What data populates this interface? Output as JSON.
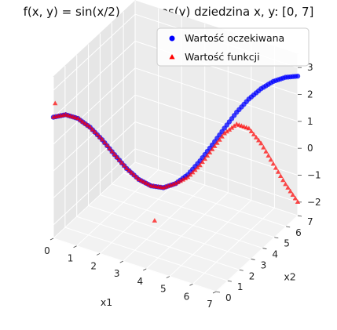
{
  "chart_data": {
    "type": "scatter",
    "title": "f(x, y) = sin(x/2) + 2* cos(y) dziedzina x, y: [0, 7]",
    "xlabel": "x1",
    "ylabel": "x2",
    "zlabel": "",
    "xlim": [
      0,
      7
    ],
    "ylim": [
      0,
      7
    ],
    "zlim": [
      -2.5,
      3.5
    ],
    "xticks": [
      "0",
      "1",
      "2",
      "3",
      "4",
      "5",
      "6",
      "7"
    ],
    "yticks": [
      "0",
      "1",
      "2",
      "3",
      "4",
      "5",
      "6",
      "7"
    ],
    "zticks": [
      "−2",
      "−1",
      "0",
      "1",
      "2",
      "3"
    ],
    "grid": true,
    "legend_position": "top-right",
    "series": [
      {
        "name": "Wartość oczekiwana",
        "marker": "circle",
        "color": "#0000ff",
        "x": [
          0.0,
          0.35,
          0.7,
          1.05,
          1.4,
          1.75,
          2.1,
          2.45,
          2.8,
          3.15,
          3.5,
          3.85,
          4.2,
          4.55,
          4.9,
          5.25,
          5.6,
          5.95,
          6.3,
          6.65,
          7.0
        ],
        "y": [
          0.0,
          0.35,
          0.7,
          1.05,
          1.4,
          1.75,
          2.1,
          2.45,
          2.8,
          3.15,
          3.5,
          3.85,
          4.2,
          4.55,
          4.9,
          5.25,
          5.6,
          5.95,
          6.3,
          6.65,
          7.0
        ],
        "z": [
          2.0,
          2.05,
          1.87,
          1.5,
          0.99,
          0.4,
          -0.16,
          -0.61,
          -0.89,
          -1.0,
          -0.89,
          -0.6,
          -0.13,
          0.42,
          1.0,
          1.55,
          2.0,
          2.34,
          2.57,
          2.68,
          2.68
        ]
      },
      {
        "name": "Wartość funkcji",
        "marker": "triangle",
        "color": "#ff0000",
        "x": [
          0.0,
          0.35,
          0.7,
          1.05,
          1.4,
          1.75,
          2.1,
          2.45,
          2.8,
          3.15,
          3.5,
          3.85,
          4.2,
          4.55,
          4.9,
          5.25,
          5.6,
          5.95,
          6.3,
          6.65,
          7.0
        ],
        "y": [
          0.0,
          0.35,
          0.7,
          1.05,
          1.4,
          1.75,
          2.1,
          2.45,
          2.8,
          3.15,
          3.5,
          3.85,
          4.2,
          4.55,
          4.9,
          5.25,
          5.6,
          5.95,
          6.3,
          6.65,
          7.0
        ],
        "z": [
          2.0,
          2.05,
          1.87,
          1.5,
          0.99,
          0.4,
          -0.16,
          -0.61,
          -0.89,
          -1.0,
          -0.89,
          -0.7,
          -0.3,
          0.25,
          0.8,
          1.1,
          0.9,
          0.3,
          -0.5,
          -1.3,
          -2.0
        ]
      },
      {
        "name": "",
        "marker": "triangle",
        "color": "#ff0000",
        "x": [
          2.9,
          0.05
        ],
        "y": [
          2.9,
          0.05
        ],
        "z": [
          -2.2,
          2.5
        ]
      }
    ]
  }
}
